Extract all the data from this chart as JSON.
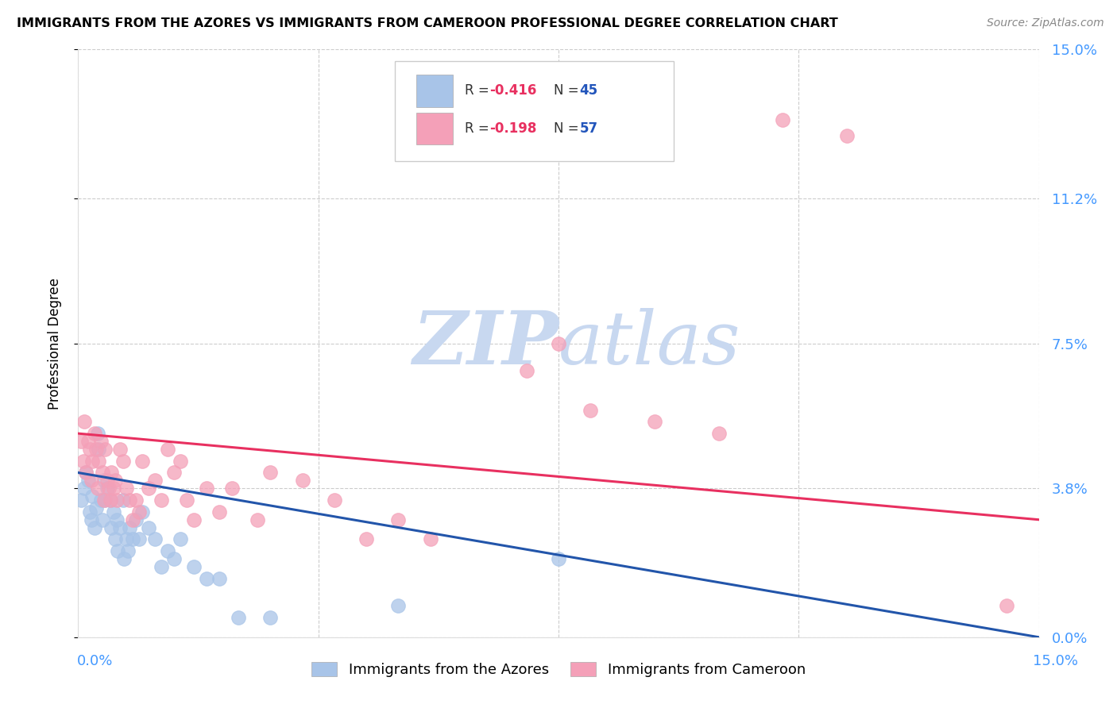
{
  "title": "IMMIGRANTS FROM THE AZORES VS IMMIGRANTS FROM CAMEROON PROFESSIONAL DEGREE CORRELATION CHART",
  "source": "Source: ZipAtlas.com",
  "ylabel": "Professional Degree",
  "ytick_labels": [
    "15.0%",
    "11.2%",
    "7.5%",
    "3.8%",
    "0.0%"
  ],
  "ytick_values": [
    15.0,
    11.2,
    7.5,
    3.8,
    0.0
  ],
  "xtick_left_label": "0.0%",
  "xtick_right_label": "15.0%",
  "xlim": [
    0.0,
    15.0
  ],
  "ylim": [
    0.0,
    15.0
  ],
  "legend_label1": "Immigrants from the Azores",
  "legend_label2": "Immigrants from Cameroon",
  "R1": "-0.416",
  "N1": "45",
  "R2": "-0.198",
  "N2": "57",
  "color_azores": "#a8c4e8",
  "color_cameroon": "#f4a0b8",
  "trendline_color_azores": "#2255aa",
  "trendline_color_cameroon": "#e83060",
  "watermark_zip_color": "#c8d8f0",
  "watermark_atlas_color": "#c8d8f0",
  "azores_x": [
    0.05,
    0.1,
    0.12,
    0.15,
    0.18,
    0.2,
    0.22,
    0.25,
    0.28,
    0.3,
    0.32,
    0.35,
    0.38,
    0.4,
    0.42,
    0.45,
    0.5,
    0.52,
    0.55,
    0.58,
    0.6,
    0.62,
    0.65,
    0.7,
    0.72,
    0.75,
    0.78,
    0.8,
    0.85,
    0.9,
    0.95,
    1.0,
    1.1,
    1.2,
    1.3,
    1.4,
    1.5,
    1.6,
    1.8,
    2.0,
    2.2,
    2.5,
    3.0,
    5.0,
    7.5
  ],
  "azores_y": [
    3.5,
    3.8,
    4.2,
    4.0,
    3.2,
    3.0,
    3.6,
    2.8,
    3.3,
    5.2,
    4.8,
    3.5,
    3.0,
    4.0,
    3.5,
    3.8,
    3.5,
    2.8,
    3.2,
    2.5,
    3.0,
    2.2,
    2.8,
    3.5,
    2.0,
    2.5,
    2.2,
    2.8,
    2.5,
    3.0,
    2.5,
    3.2,
    2.8,
    2.5,
    1.8,
    2.2,
    2.0,
    2.5,
    1.8,
    1.5,
    1.5,
    0.5,
    0.5,
    0.8,
    2.0
  ],
  "cameroon_x": [
    0.05,
    0.08,
    0.1,
    0.12,
    0.15,
    0.18,
    0.2,
    0.22,
    0.25,
    0.28,
    0.3,
    0.32,
    0.35,
    0.38,
    0.4,
    0.42,
    0.45,
    0.48,
    0.5,
    0.52,
    0.55,
    0.58,
    0.6,
    0.65,
    0.7,
    0.75,
    0.8,
    0.85,
    0.9,
    0.95,
    1.0,
    1.1,
    1.2,
    1.3,
    1.4,
    1.5,
    1.6,
    1.7,
    1.8,
    2.0,
    2.2,
    2.4,
    2.8,
    3.0,
    3.5,
    4.0,
    4.5,
    5.0,
    5.5,
    7.0,
    7.5,
    8.0,
    9.0,
    10.0,
    11.0,
    12.0,
    14.5
  ],
  "cameroon_y": [
    5.0,
    4.5,
    5.5,
    4.2,
    5.0,
    4.8,
    4.0,
    4.5,
    5.2,
    4.8,
    3.8,
    4.5,
    5.0,
    4.2,
    3.5,
    4.8,
    4.0,
    3.8,
    3.5,
    4.2,
    3.8,
    4.0,
    3.5,
    4.8,
    4.5,
    3.8,
    3.5,
    3.0,
    3.5,
    3.2,
    4.5,
    3.8,
    4.0,
    3.5,
    4.8,
    4.2,
    4.5,
    3.5,
    3.0,
    3.8,
    3.2,
    3.8,
    3.0,
    4.2,
    4.0,
    3.5,
    2.5,
    3.0,
    2.5,
    6.8,
    7.5,
    5.8,
    5.5,
    5.2,
    13.2,
    12.8,
    0.8
  ],
  "trendline_azores_x0": 0.0,
  "trendline_azores_y0": 4.2,
  "trendline_azores_x1": 15.0,
  "trendline_azores_y1": 0.0,
  "trendline_cameroon_x0": 0.0,
  "trendline_cameroon_y0": 5.2,
  "trendline_cameroon_x1": 15.0,
  "trendline_cameroon_y1": 3.0
}
